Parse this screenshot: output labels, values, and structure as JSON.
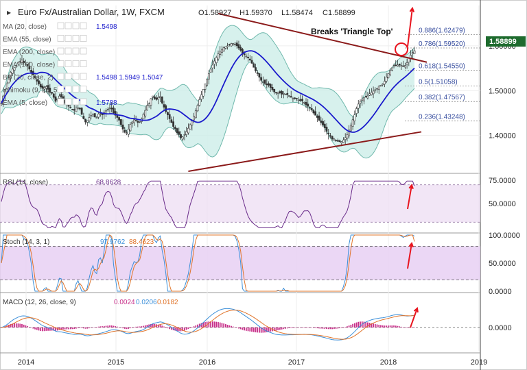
{
  "header": {
    "symbol": "Euro Fx/Australian Dollar, 1W, FXCM",
    "open": "O1.58927",
    "high": "H1.59370",
    "low": "L1.58474",
    "close": "C1.58899"
  },
  "annotations": {
    "breakout_text": "Breaks 'Triangle Top'"
  },
  "colors": {
    "price_up": "#333333",
    "price_down": "#333333",
    "bollinger_fill": "#cdeee9",
    "bollinger_line": "#6fb8ac",
    "ma20": "#1a1acc",
    "triangle": "#8b1a1a",
    "fib_text": "#3a50a0",
    "rsi_line": "#6a2c8a",
    "rsi_band": "#ecdcf2",
    "stoch_k": "#3b8fd9",
    "stoch_d": "#e0742a",
    "stoch_band": "#e6cdf2",
    "macd_line": "#3b8fd9",
    "macd_signal": "#e0742a",
    "macd_hist": "#c8308a",
    "arrow": "#e8141e",
    "last_price_bg": "#1e6b2e"
  },
  "indicator_labels": [
    {
      "text": "MA (20, close)",
      "value": "1.5498"
    },
    {
      "text": "EMA (55, close)",
      "value": ""
    },
    {
      "text": "EMA (200, close)",
      "value": ""
    },
    {
      "text": "EMA (100, close)",
      "value": ""
    },
    {
      "text": "BB (20, close, 2)",
      "value": "1.5498  1.5949  1.5047"
    },
    {
      "text": "Ichimoku (9, 26, 52)",
      "value": ""
    },
    {
      "text": "EMA (5, close)",
      "value": "1.5788"
    }
  ],
  "chart_data": [
    {
      "type": "candlestick",
      "panel": "price",
      "x_ticks": [
        "2014",
        "2015",
        "2016",
        "2017",
        "2018",
        "2019"
      ],
      "y_ticks": [
        "1.40000",
        "1.50000",
        "1.60000"
      ],
      "ylim": [
        1.32,
        1.69
      ],
      "last_price": "1.58899",
      "fibonacci": [
        {
          "label": "0.886(1.62479)",
          "value": 1.62479
        },
        {
          "label": "0.786(1.59520)",
          "value": 1.5952
        },
        {
          "label": "0.618(1.54550)",
          "value": 1.5455
        },
        {
          "label": "0.5(1.51058)",
          "value": 1.51058
        },
        {
          "label": "0.382(1.47567)",
          "value": 1.47567
        },
        {
          "label": "0.236(1.43248)",
          "value": 1.43248
        }
      ],
      "close_series": [
        1.472,
        1.488,
        1.503,
        1.515,
        1.528,
        1.541,
        1.548,
        1.552,
        1.556,
        1.563,
        1.565,
        1.568,
        1.562,
        1.56,
        1.556,
        1.548,
        1.541,
        1.535,
        1.528,
        1.521,
        1.515,
        1.508,
        1.505,
        1.508,
        1.509,
        1.503,
        1.496,
        1.494,
        1.485,
        1.476,
        1.482,
        1.488,
        1.486,
        1.476,
        1.472,
        1.47,
        1.465,
        1.462,
        1.458,
        1.456,
        1.461,
        1.462,
        1.459,
        1.447,
        1.437,
        1.43,
        1.433,
        1.44,
        1.445,
        1.446,
        1.441,
        1.44,
        1.448,
        1.449,
        1.446,
        1.451,
        1.455,
        1.458,
        1.461,
        1.459,
        1.45,
        1.445,
        1.44,
        1.434,
        1.424,
        1.414,
        1.407,
        1.406,
        1.414,
        1.425,
        1.43,
        1.435,
        1.433,
        1.429,
        1.431,
        1.437,
        1.447,
        1.456,
        1.467,
        1.471,
        1.482,
        1.488,
        1.482,
        1.48,
        1.485,
        1.487,
        1.472,
        1.463,
        1.453,
        1.446,
        1.437,
        1.429,
        1.42,
        1.415,
        1.406,
        1.402,
        1.395,
        1.397,
        1.402,
        1.409,
        1.416,
        1.424,
        1.432,
        1.443,
        1.455,
        1.467,
        1.48,
        1.491,
        1.503,
        1.515,
        1.526,
        1.538,
        1.548,
        1.557,
        1.566,
        1.574,
        1.582,
        1.588,
        1.592,
        1.596,
        1.598,
        1.6,
        1.603,
        1.605,
        1.605,
        1.604,
        1.6,
        1.595,
        1.59,
        1.583,
        1.58,
        1.577,
        1.573,
        1.568,
        1.561,
        1.552,
        1.544,
        1.538,
        1.53,
        1.523,
        1.52,
        1.516,
        1.513,
        1.512,
        1.507,
        1.502,
        1.497,
        1.496,
        1.497,
        1.495,
        1.492,
        1.494,
        1.492,
        1.491,
        1.489,
        1.485,
        1.483,
        1.483,
        1.482,
        1.479,
        1.478,
        1.477,
        1.474,
        1.468,
        1.465,
        1.462,
        1.457,
        1.45,
        1.445,
        1.44,
        1.434,
        1.429,
        1.423,
        1.417,
        1.409,
        1.403,
        1.399,
        1.392,
        1.392,
        1.389,
        1.387,
        1.386,
        1.386,
        1.39,
        1.395,
        1.402,
        1.412,
        1.423,
        1.435,
        1.446,
        1.46,
        1.47,
        1.476,
        1.481,
        1.484,
        1.487,
        1.488,
        1.493,
        1.496,
        1.499,
        1.502,
        1.505,
        1.51,
        1.512,
        1.515,
        1.521,
        1.53,
        1.538,
        1.545,
        1.551,
        1.556,
        1.557,
        1.557,
        1.557,
        1.556,
        1.555,
        1.556,
        1.562,
        1.573,
        1.579,
        1.585,
        1.589
      ]
    },
    {
      "type": "line",
      "panel": "rsi",
      "title": "RSI (14, close)",
      "value_label": "68.8628",
      "y_ticks": [
        "50.0000",
        "75.0000"
      ],
      "ylim": [
        20,
        80
      ],
      "bands": [
        30,
        70
      ]
    },
    {
      "type": "line",
      "panel": "stochastic",
      "title": "Stoch (14, 3, 1)",
      "value_labels": [
        "97.9762",
        "88.4623"
      ],
      "y_ticks": [
        "0.0000",
        "50.0000",
        "100.0000"
      ],
      "ylim": [
        0,
        100
      ],
      "bands": [
        20,
        80
      ]
    },
    {
      "type": "line",
      "panel": "macd",
      "title": "MACD (12, 26, close, 9)",
      "value_labels": [
        "0.0024",
        "0.0206",
        "0.0182"
      ],
      "y_ticks": [
        "0.0000"
      ],
      "ylim": [
        -0.05,
        0.07
      ]
    }
  ]
}
